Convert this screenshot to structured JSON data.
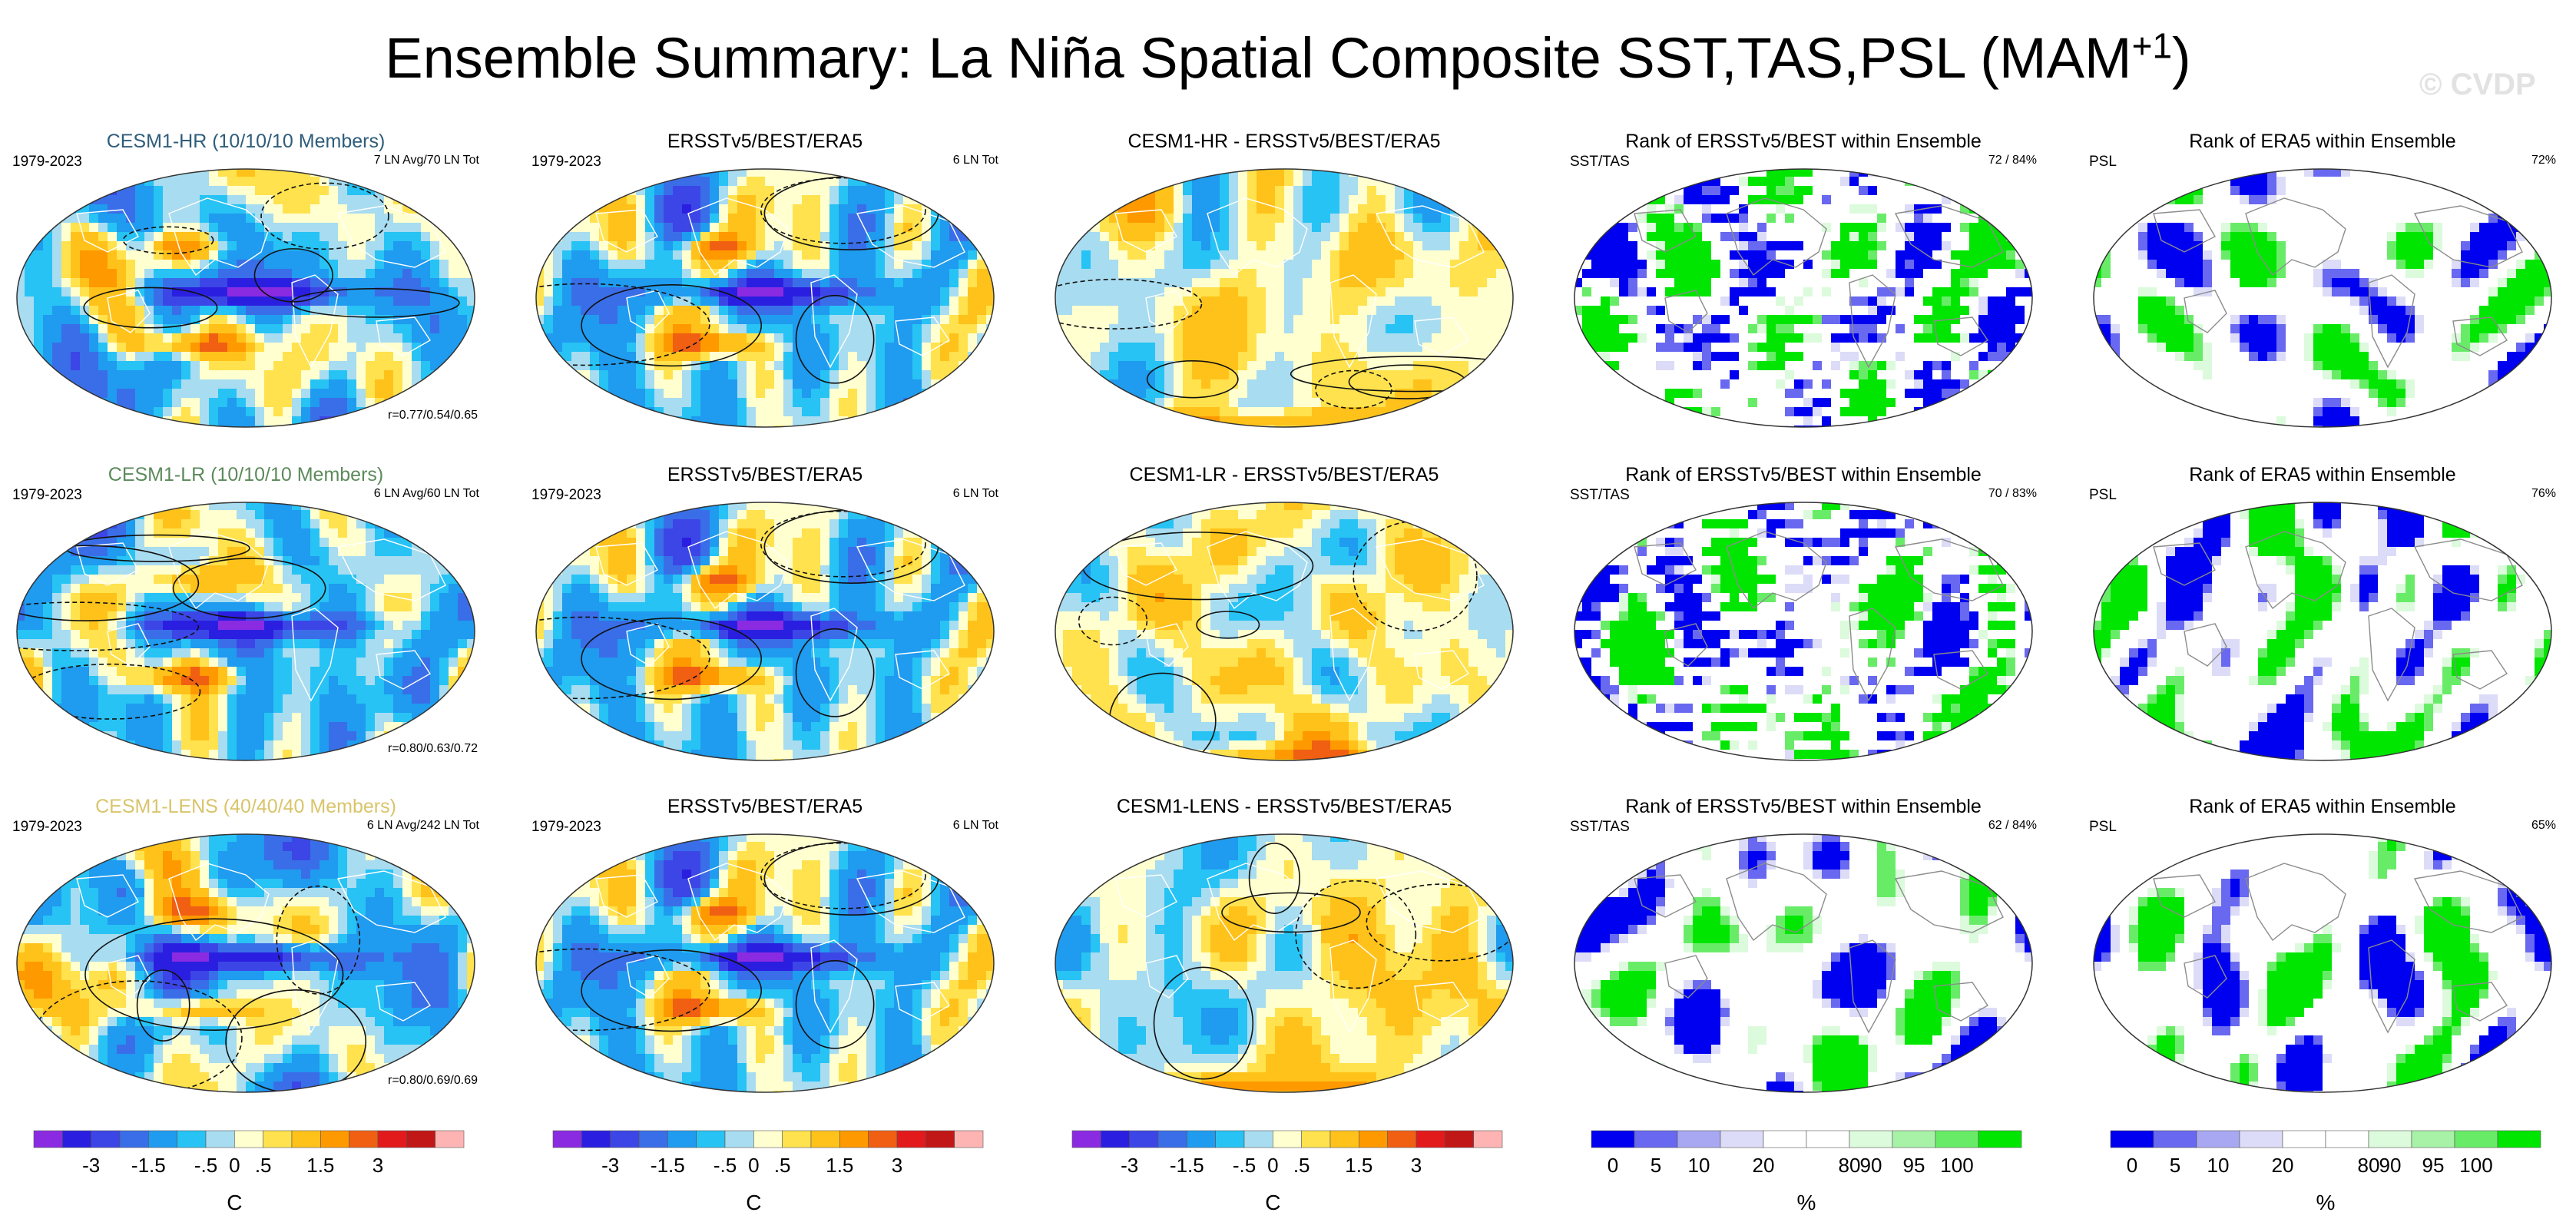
{
  "header": {
    "title_main": "Ensemble Summary: La Niña Spatial Composite SST,TAS,PSL (MAM",
    "title_sup": "+1",
    "title_end": ")",
    "watermark": "© CVDP"
  },
  "chart_data": [
    {
      "type": "heatmap",
      "row": 0,
      "col": 0,
      "title": "CESM1-HR (10/10/10 Members)",
      "left_label": "1979-2023",
      "right_label": "7 LN Avg/70 LN Tot",
      "stat_label": "r=0.77/0.54/0.65",
      "title_color": "#2e5d7a",
      "field": "composite",
      "seed": 11
    },
    {
      "type": "heatmap",
      "row": 0,
      "col": 1,
      "title": "ERSSTv5/BEST/ERA5",
      "left_label": "1979-2023",
      "right_label": "6 LN Tot",
      "field": "composite",
      "seed": 23
    },
    {
      "type": "heatmap",
      "row": 0,
      "col": 2,
      "title": "CESM1-HR - ERSSTv5/BEST/ERA5",
      "field": "difference",
      "seed": 37
    },
    {
      "type": "heatmap",
      "row": 0,
      "col": 3,
      "title": "Rank of ERSSTv5/BEST within Ensemble",
      "left_label": "SST/TAS",
      "right_label": "72 /  84%",
      "field": "rank",
      "seed": 41
    },
    {
      "type": "heatmap",
      "row": 0,
      "col": 4,
      "title": "Rank of ERA5 within Ensemble",
      "left_label": "PSL",
      "right_label": "72%",
      "field": "rank_smooth",
      "seed": 53
    },
    {
      "type": "heatmap",
      "row": 1,
      "col": 0,
      "title": "CESM1-LR (10/10/10 Members)",
      "left_label": "1979-2023",
      "right_label": "6 LN Avg/60 LN Tot",
      "stat_label": "r=0.80/0.63/0.72",
      "title_color": "#5c8a5c",
      "field": "composite",
      "seed": 61
    },
    {
      "type": "heatmap",
      "row": 1,
      "col": 1,
      "title": "ERSSTv5/BEST/ERA5",
      "left_label": "1979-2023",
      "right_label": "6 LN Tot",
      "field": "composite",
      "seed": 23
    },
    {
      "type": "heatmap",
      "row": 1,
      "col": 2,
      "title": "CESM1-LR - ERSSTv5/BEST/ERA5",
      "field": "difference",
      "seed": 73
    },
    {
      "type": "heatmap",
      "row": 1,
      "col": 3,
      "title": "Rank of ERSSTv5/BEST within Ensemble",
      "left_label": "SST/TAS",
      "right_label": "70 /  83%",
      "field": "rank",
      "seed": 83
    },
    {
      "type": "heatmap",
      "row": 1,
      "col": 4,
      "title": "Rank of ERA5 within Ensemble",
      "left_label": "PSL",
      "right_label": "76%",
      "field": "rank_smooth",
      "seed": 97
    },
    {
      "type": "heatmap",
      "row": 2,
      "col": 0,
      "title": "CESM1-LENS (40/40/40 Members)",
      "left_label": "1979-2023",
      "right_label": "6 LN Avg/242 LN Tot",
      "stat_label": "r=0.80/0.69/0.69",
      "title_color": "#d9c46a",
      "field": "composite",
      "seed": 101
    },
    {
      "type": "heatmap",
      "row": 2,
      "col": 1,
      "title": "ERSSTv5/BEST/ERA5",
      "left_label": "1979-2023",
      "right_label": "6 LN Tot",
      "field": "composite",
      "seed": 23
    },
    {
      "type": "heatmap",
      "row": 2,
      "col": 2,
      "title": "CESM1-LENS - ERSSTv5/BEST/ERA5",
      "field": "difference",
      "seed": 113
    },
    {
      "type": "heatmap",
      "row": 2,
      "col": 3,
      "title": "Rank of ERSSTv5/BEST within Ensemble",
      "left_label": "SST/TAS",
      "right_label": "62 /  84%",
      "field": "rank_smooth",
      "seed": 127
    },
    {
      "type": "heatmap",
      "row": 2,
      "col": 4,
      "title": "Rank of ERA5 within Ensemble",
      "left_label": "PSL",
      "right_label": "65%",
      "field": "rank_smooth",
      "seed": 131
    }
  ],
  "colorbars": {
    "temperature": {
      "units": "C",
      "colors": [
        "#8a2be2",
        "#2a1fe0",
        "#3c46e6",
        "#3a6ee8",
        "#1f9bef",
        "#27c3f5",
        "#a8dcf0",
        "#ffffd0",
        "#ffe24d",
        "#ffc21a",
        "#ff9900",
        "#f05f12",
        "#e31a1c",
        "#c21717",
        "#ffb4b4"
      ],
      "tick_labels": [
        "-3",
        "-1.5",
        "-.5",
        "0",
        ".5",
        "1.5",
        "3"
      ]
    },
    "rank": {
      "units": "%",
      "colors": [
        "#0000f0",
        "#6868f0",
        "#a8a8f2",
        "#dcdcf8",
        "#ffffff",
        "#ffffff",
        "#dcfadc",
        "#a8f2a8",
        "#68ec68",
        "#00e600"
      ],
      "tick_labels": [
        "0",
        "5",
        "10",
        "20",
        "80",
        "90",
        "95",
        "100"
      ]
    }
  }
}
